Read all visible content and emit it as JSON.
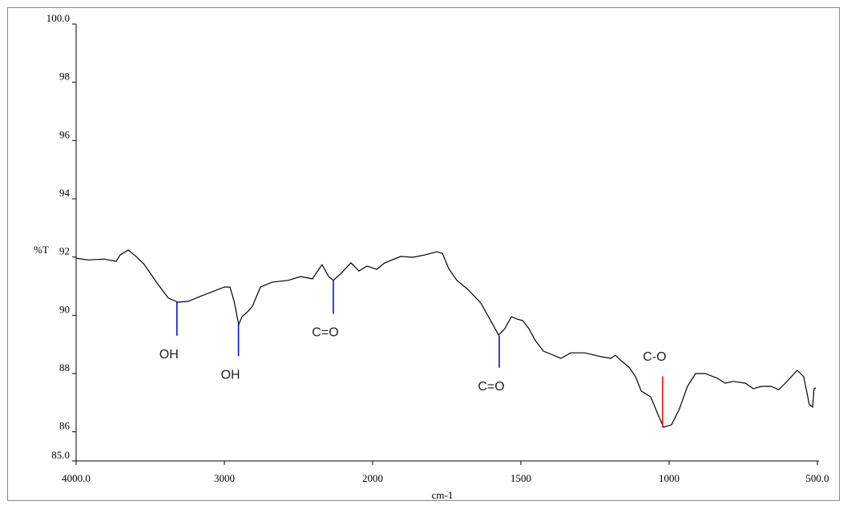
{
  "chart_data": {
    "type": "line",
    "xlabel": "cm-1",
    "ylabel": "%T",
    "xlim": [
      4000,
      500
    ],
    "ylim": [
      85,
      100
    ],
    "x_scale": {
      "break": 2000,
      "stretch": 2
    },
    "xticks": [
      {
        "value": 4000,
        "label": "4000.0"
      },
      3000,
      2000,
      1500,
      1000,
      {
        "value": 500,
        "label": "500.0"
      }
    ],
    "yticks": [
      {
        "value": 100,
        "label": "100.0"
      },
      98,
      96,
      94,
      92,
      90,
      88,
      86,
      {
        "value": 85,
        "label": "85.0"
      }
    ],
    "grid": false,
    "x": [
      4000,
      3919,
      3811,
      3730,
      3703,
      3649,
      3595,
      3541,
      3459,
      3378,
      3314,
      3243,
      3162,
      3081,
      3000,
      2962,
      2935,
      2903,
      2881,
      2838,
      2811,
      2757,
      2676,
      2568,
      2486,
      2406,
      2378,
      2341,
      2297,
      2265,
      2216,
      2146,
      2092,
      2038,
      1986,
      1959,
      1905,
      1865,
      1824,
      1784,
      1765,
      1743,
      1716,
      1676,
      1635,
      1602,
      1575,
      1554,
      1532,
      1513,
      1494,
      1473,
      1451,
      1424,
      1397,
      1365,
      1332,
      1284,
      1230,
      1197,
      1181,
      1162,
      1135,
      1113,
      1094,
      1062,
      1040,
      1019,
      992,
      965,
      938,
      911,
      878,
      838,
      811,
      784,
      743,
      716,
      689,
      657,
      630,
      608,
      568,
      546,
      527,
      516,
      511,
      505
    ],
    "series": [
      {
        "color": "#000000",
        "values": [
          91.96,
          91.9,
          91.93,
          91.85,
          92.07,
          92.24,
          92.02,
          91.75,
          91.14,
          90.59,
          90.45,
          90.48,
          90.65,
          90.81,
          90.97,
          90.97,
          90.5,
          89.68,
          89.95,
          90.15,
          90.31,
          90.97,
          91.14,
          91.2,
          91.33,
          91.25,
          91.47,
          91.74,
          91.33,
          91.2,
          91.42,
          91.8,
          91.52,
          91.69,
          91.58,
          91.8,
          92.02,
          91.99,
          92.07,
          92.18,
          92.13,
          91.6,
          91.2,
          90.86,
          90.42,
          89.82,
          89.32,
          89.54,
          89.95,
          89.87,
          89.82,
          89.54,
          89.13,
          88.77,
          88.66,
          88.52,
          88.71,
          88.71,
          88.58,
          88.52,
          88.63,
          88.44,
          88.22,
          87.89,
          87.4,
          87.2,
          86.65,
          86.16,
          86.24,
          86.79,
          87.56,
          88.0,
          88.0,
          87.84,
          87.67,
          87.73,
          87.67,
          87.48,
          87.56,
          87.56,
          87.45,
          87.67,
          88.11,
          87.89,
          86.93,
          86.85,
          87.48,
          87.51
        ]
      }
    ],
    "annotations": [
      {
        "text": "OH",
        "x": 3320,
        "y": 90.45,
        "y2": 89.3,
        "color": "#0000cc"
      },
      {
        "text": "OH",
        "x": 2905,
        "y": 89.7,
        "y2": 88.6,
        "color": "#0000cc"
      },
      {
        "text": "C=O",
        "x": 2265,
        "y": 91.2,
        "y2": 90.05,
        "color": "#0000cc"
      },
      {
        "text": "C=O",
        "x": 1573,
        "y": 89.3,
        "y2": 88.2,
        "color": "#0000cc"
      },
      {
        "text": "C-O",
        "x": 1022,
        "y": 86.15,
        "y2": 87.9,
        "color": "#ee0000"
      }
    ]
  }
}
